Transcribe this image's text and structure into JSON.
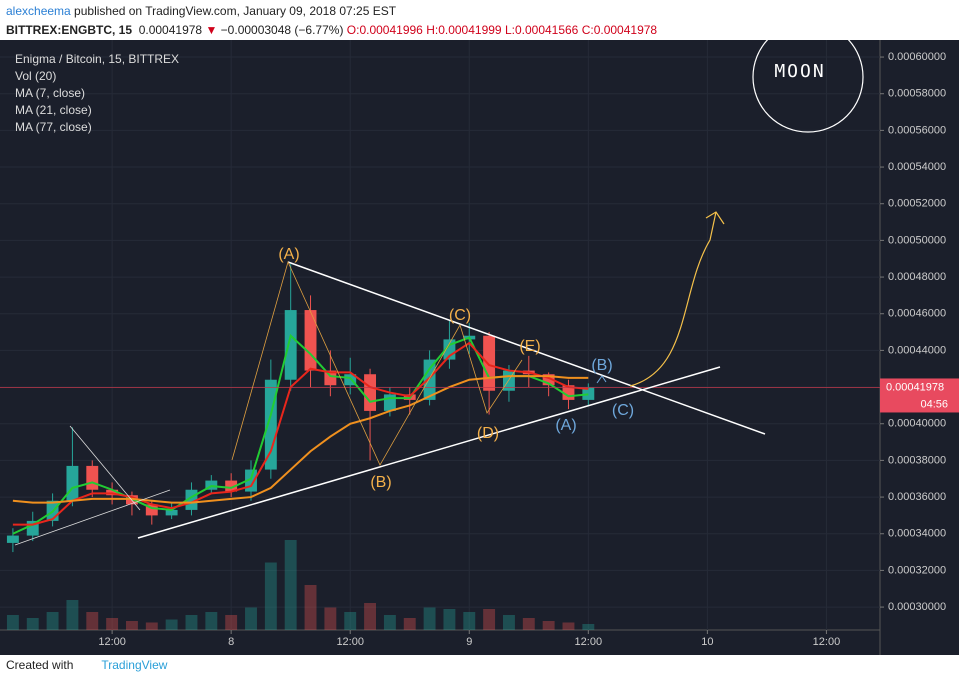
{
  "header": {
    "author": "alexcheema",
    "published": " published on TradingView.com, January 09, 2018 07:25 EST",
    "symbol": "BITTREX:ENGBTC, 15",
    "last": "0.00041978",
    "arrow": "▼",
    "change": "−0.00003048 (−6.77%)",
    "open": "O:0.00041996",
    "high": "H:0.00041999",
    "low": "L:0.00041566",
    "close": "C:0.00041978"
  },
  "footer": {
    "created": "Created with",
    "brand": "TradingView"
  },
  "chart_data": {
    "type": "candlestick",
    "legend": [
      "Enigma / Bitcoin, 15, BITTREX",
      "Vol (20)",
      "MA (7, close)",
      "MA (21, close)",
      "MA (77, close)"
    ],
    "x": [
      -22,
      -20,
      -18,
      -16,
      -14,
      -12,
      -10,
      -8,
      -6,
      -4,
      -2,
      0,
      2,
      4,
      6,
      8,
      10,
      12,
      14,
      16,
      18,
      20,
      22,
      24,
      26,
      28,
      30,
      32,
      34,
      36
    ],
    "open": [
      0.000335,
      0.000339,
      0.000347,
      0.000358,
      0.000377,
      0.000364,
      0.000361,
      0.000356,
      0.00035,
      0.000353,
      0.000364,
      0.000369,
      0.000363,
      0.000375,
      0.000424,
      0.000462,
      0.000429,
      0.000421,
      0.000427,
      0.000407,
      0.000416,
      0.000413,
      0.000435,
      0.000446,
      0.000448,
      0.000418,
      0.000429,
      0.000427,
      0.000421,
      0.000413
    ],
    "high": [
      0.000343,
      0.000352,
      0.000362,
      0.000398,
      0.00038,
      0.000368,
      0.000363,
      0.000358,
      0.000357,
      0.000368,
      0.000372,
      0.000373,
      0.00038,
      0.000435,
      0.000487,
      0.00047,
      0.00044,
      0.000436,
      0.00043,
      0.00042,
      0.00042,
      0.00044,
      0.000456,
      0.000455,
      0.00045,
      0.000432,
      0.000437,
      0.000428,
      0.000424,
      0.000422
    ],
    "low": [
      0.00033,
      0.000336,
      0.000344,
      0.000355,
      0.00036,
      0.000356,
      0.00035,
      0.000345,
      0.000348,
      0.00035,
      0.000362,
      0.00036,
      0.000358,
      0.00037,
      0.000418,
      0.00042,
      0.000415,
      0.000416,
      0.00038,
      0.000404,
      0.000405,
      0.00041,
      0.00043,
      0.000438,
      0.000405,
      0.000412,
      0.00042,
      0.000415,
      0.000408,
      0.00041
    ],
    "close": [
      0.000339,
      0.000347,
      0.000358,
      0.000377,
      0.000364,
      0.000361,
      0.000356,
      0.00035,
      0.000353,
      0.000364,
      0.000369,
      0.000363,
      0.000375,
      0.000424,
      0.000462,
      0.000429,
      0.000421,
      0.000427,
      0.000407,
      0.000416,
      0.000413,
      0.000435,
      0.000446,
      0.000448,
      0.000418,
      0.000429,
      0.000427,
      0.000421,
      0.000413,
      0.00041978
    ],
    "volume": [
      10,
      8,
      12,
      20,
      12,
      8,
      6,
      5,
      7,
      10,
      12,
      10,
      15,
      45,
      60,
      30,
      15,
      12,
      18,
      10,
      8,
      15,
      14,
      12,
      14,
      10,
      8,
      6,
      5,
      4
    ],
    "volume_lim": [
      0,
      100
    ],
    "series": [
      {
        "name": "MA (7, close)",
        "color": "#22cc33",
        "values": [
          0.00034,
          0.000345,
          0.000352,
          0.000365,
          0.000368,
          0.000364,
          0.000359,
          0.000354,
          0.000353,
          0.00036,
          0.000366,
          0.000365,
          0.00037,
          0.000405,
          0.000448,
          0.000438,
          0.000426,
          0.000425,
          0.000412,
          0.000414,
          0.000414,
          0.00043,
          0.000443,
          0.000447,
          0.000425,
          0.000426,
          0.000426,
          0.000422,
          0.000415,
          0.000416
        ]
      },
      {
        "name": "MA (21, close)",
        "color": "#e8261c",
        "values": [
          0.000345,
          0.000345,
          0.000348,
          0.000358,
          0.000362,
          0.000362,
          0.00036,
          0.000356,
          0.000354,
          0.000357,
          0.000362,
          0.000363,
          0.000366,
          0.000385,
          0.00042,
          0.00043,
          0.000428,
          0.000428,
          0.00042,
          0.000417,
          0.000415,
          0.000425,
          0.000437,
          0.000444,
          0.000432,
          0.000429,
          0.000428,
          0.000425,
          0.00042,
          0.000419
        ]
      },
      {
        "name": "MA (77, close)",
        "color": "#f0901e",
        "values": [
          0.000358,
          0.000357,
          0.000357,
          0.000358,
          0.000359,
          0.000359,
          0.000359,
          0.000358,
          0.000357,
          0.000357,
          0.000358,
          0.000359,
          0.00036,
          0.000365,
          0.000375,
          0.000385,
          0.000393,
          0.0004,
          0.000403,
          0.000407,
          0.00041,
          0.000415,
          0.00042,
          0.000424,
          0.000425,
          0.000426,
          0.000426,
          0.000426,
          0.000425,
          0.000425
        ]
      }
    ],
    "up_color": "#26a69a",
    "down_color": "#ef5350",
    "last_price": 0.00041978,
    "countdown": "04:56",
    "xlim": [
      -23.3,
      65.4
    ],
    "ylim": [
      0.0002875,
      0.0006093
    ],
    "xticks": [
      {
        "value": -12,
        "label": "12:00"
      },
      {
        "value": 0,
        "label": "8"
      },
      {
        "value": 12,
        "label": "12:00"
      },
      {
        "value": 24,
        "label": "9"
      },
      {
        "value": 36,
        "label": "12:00"
      },
      {
        "value": 48,
        "label": "10"
      },
      {
        "value": 60,
        "label": "12:00"
      }
    ],
    "yticks": [
      {
        "value": 0.0003,
        "label": "0.00030000"
      },
      {
        "value": 0.00032,
        "label": "0.00032000"
      },
      {
        "value": 0.00034,
        "label": "0.00034000"
      },
      {
        "value": 0.00036,
        "label": "0.00036000"
      },
      {
        "value": 0.00038,
        "label": "0.00038000"
      },
      {
        "value": 0.0004,
        "label": "0.00040000"
      },
      {
        "value": 0.00042,
        "label": "0.00042000"
      },
      {
        "value": 0.00044,
        "label": "0.00044000"
      },
      {
        "value": 0.00046,
        "label": "0.00046000"
      },
      {
        "value": 0.00048,
        "label": "0.00048000"
      },
      {
        "value": 0.0005,
        "label": "0.00050000"
      },
      {
        "value": 0.00052,
        "label": "0.00052000"
      },
      {
        "value": 0.00054,
        "label": "0.00054000"
      },
      {
        "value": 0.00056,
        "label": "0.00056000"
      },
      {
        "value": 0.00058,
        "label": "0.00058000"
      },
      {
        "value": 0.0006,
        "label": "0.00060000"
      }
    ],
    "grid": true,
    "annotations": {
      "orange": [
        "(A)",
        "(B)",
        "(C)",
        "(D)",
        "(E)"
      ],
      "blue": [
        "(B)",
        "(A)",
        "(C)"
      ],
      "moon": "MOON"
    }
  }
}
